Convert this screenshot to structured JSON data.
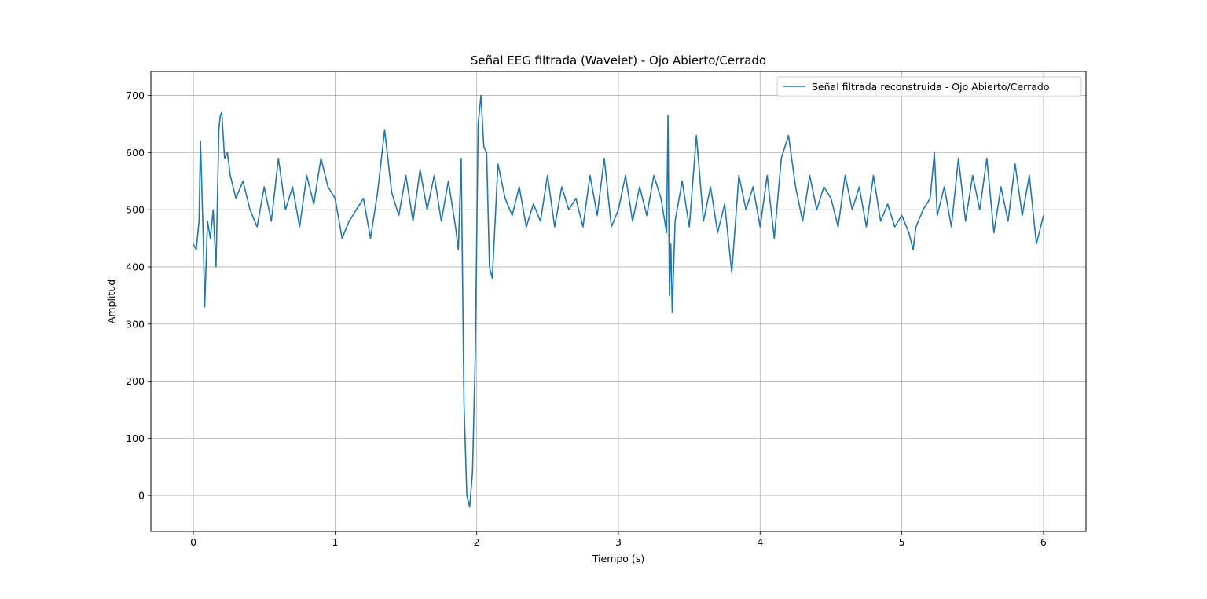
{
  "chart_data": {
    "type": "line",
    "title": "Señal EEG filtrada (Wavelet) - Ojo Abierto/Cerrado",
    "xlabel": "Tiempo (s)",
    "ylabel": "Amplitud",
    "xlim": [
      -0.3,
      6.3
    ],
    "ylim": [
      -63,
      742
    ],
    "xticks": [
      0,
      1,
      2,
      3,
      4,
      5,
      6
    ],
    "yticks": [
      0,
      100,
      200,
      300,
      400,
      500,
      600,
      700
    ],
    "xtick_labels": [
      "0",
      "1",
      "2",
      "3",
      "4",
      "5",
      "6"
    ],
    "ytick_labels": [
      "0",
      "100",
      "200",
      "300",
      "400",
      "500",
      "600",
      "700"
    ],
    "grid": true,
    "legend_position": "top-right",
    "color": "#1f77b4",
    "series": [
      {
        "name": "Señal filtrada reconstruida - Ojo Abierto/Cerrado",
        "x": [
          0.0,
          0.02,
          0.04,
          0.05,
          0.07,
          0.08,
          0.1,
          0.12,
          0.14,
          0.16,
          0.18,
          0.19,
          0.2,
          0.22,
          0.24,
          0.26,
          0.3,
          0.35,
          0.4,
          0.45,
          0.5,
          0.55,
          0.6,
          0.65,
          0.7,
          0.75,
          0.8,
          0.85,
          0.9,
          0.95,
          1.0,
          1.05,
          1.1,
          1.15,
          1.2,
          1.25,
          1.3,
          1.35,
          1.4,
          1.45,
          1.5,
          1.55,
          1.6,
          1.65,
          1.7,
          1.75,
          1.8,
          1.85,
          1.87,
          1.89,
          1.91,
          1.93,
          1.95,
          1.97,
          1.99,
          2.01,
          2.03,
          2.05,
          2.07,
          2.09,
          2.11,
          2.15,
          2.2,
          2.25,
          2.3,
          2.35,
          2.4,
          2.45,
          2.5,
          2.55,
          2.6,
          2.65,
          2.7,
          2.75,
          2.8,
          2.85,
          2.9,
          2.95,
          3.0,
          3.05,
          3.1,
          3.15,
          3.2,
          3.25,
          3.3,
          3.34,
          3.35,
          3.36,
          3.37,
          3.38,
          3.4,
          3.45,
          3.5,
          3.55,
          3.6,
          3.65,
          3.7,
          3.75,
          3.8,
          3.85,
          3.9,
          3.95,
          4.0,
          4.05,
          4.1,
          4.15,
          4.2,
          4.25,
          4.3,
          4.35,
          4.4,
          4.45,
          4.5,
          4.55,
          4.6,
          4.65,
          4.7,
          4.75,
          4.8,
          4.85,
          4.9,
          4.95,
          5.0,
          5.05,
          5.08,
          5.1,
          5.15,
          5.2,
          5.23,
          5.25,
          5.3,
          5.35,
          5.4,
          5.45,
          5.5,
          5.55,
          5.6,
          5.65,
          5.7,
          5.75,
          5.8,
          5.85,
          5.9,
          5.95,
          6.0
        ],
        "values": [
          440,
          430,
          480,
          620,
          450,
          330,
          480,
          450,
          500,
          400,
          640,
          665,
          670,
          590,
          600,
          560,
          520,
          550,
          500,
          470,
          540,
          480,
          590,
          500,
          540,
          470,
          560,
          510,
          590,
          540,
          520,
          450,
          480,
          500,
          520,
          450,
          530,
          640,
          530,
          490,
          560,
          480,
          570,
          500,
          560,
          480,
          550,
          470,
          430,
          590,
          160,
          0,
          -20,
          40,
          250,
          650,
          700,
          610,
          600,
          400,
          380,
          580,
          520,
          490,
          540,
          470,
          510,
          480,
          560,
          470,
          540,
          500,
          520,
          470,
          560,
          490,
          590,
          470,
          500,
          560,
          480,
          540,
          490,
          560,
          520,
          460,
          665,
          350,
          440,
          320,
          480,
          550,
          470,
          630,
          480,
          540,
          460,
          510,
          390,
          560,
          500,
          540,
          470,
          560,
          450,
          590,
          630,
          540,
          480,
          560,
          500,
          540,
          520,
          470,
          560,
          500,
          540,
          470,
          560,
          480,
          510,
          470,
          490,
          460,
          430,
          470,
          500,
          520,
          600,
          490,
          540,
          470,
          590,
          480,
          560,
          500,
          590,
          460,
          540,
          480,
          580,
          490,
          560,
          440,
          490
        ]
      }
    ]
  }
}
